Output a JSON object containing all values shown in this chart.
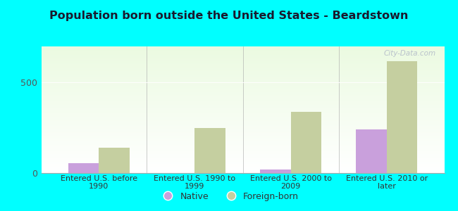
{
  "title": "Population born outside the United States - Beardstown",
  "categories": [
    "Entered U.S. before\n1990",
    "Entered U.S. 1990 to\n1999",
    "Entered U.S. 2000 to\n2009",
    "Entered U.S. 2010 or\nlater"
  ],
  "native_values": [
    55,
    0,
    18,
    240
  ],
  "foreign_values": [
    140,
    250,
    340,
    620
  ],
  "native_color": "#c9a0dc",
  "foreign_color": "#c5cfa0",
  "background_color": "#00ffff",
  "ylim": [
    0,
    700
  ],
  "yticks": [
    0,
    500
  ],
  "bar_width": 0.32,
  "title_fontsize": 11.5,
  "legend_labels": [
    "Native",
    "Foreign-born"
  ],
  "watermark": "City-Data.com"
}
